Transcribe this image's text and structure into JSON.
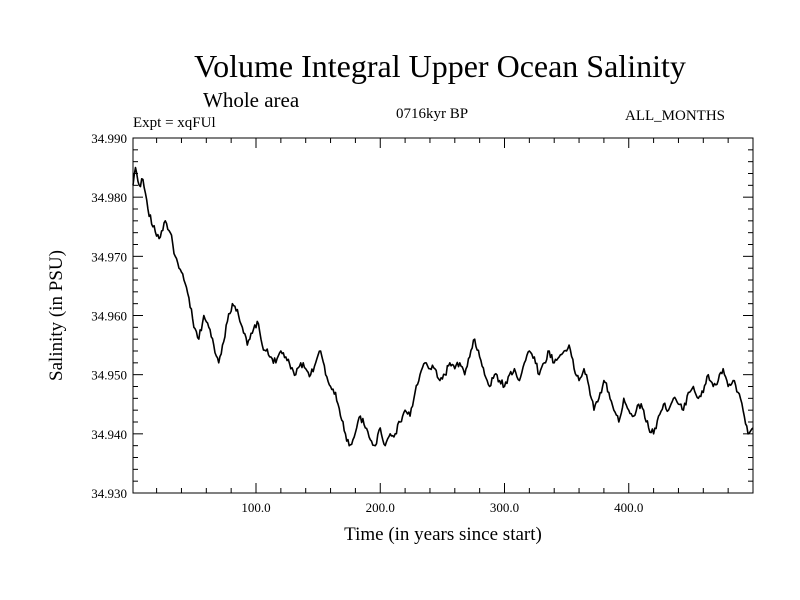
{
  "header": {
    "title": "Volume Integral Upper Ocean Salinity",
    "subtitle": "Whole area",
    "left_label": "Expt = xqFUl",
    "center_label": "0716kyr BP",
    "right_label": "ALL_MONTHS"
  },
  "colors": {
    "line": "#000000",
    "axis": "#000000",
    "background": "#ffffff"
  },
  "chart_data": {
    "type": "line",
    "title": "Volume Integral Upper Ocean Salinity",
    "subtitle": "Whole area",
    "xlabel": "Time (in years since start)",
    "ylabel": "Salinity (in PSU)",
    "xlim": [
      1,
      500
    ],
    "ylim": [
      34.93,
      34.99
    ],
    "x_ticks": [
      100,
      200,
      300,
      400
    ],
    "x_tick_labels": [
      "100.0",
      "200.0",
      "300.0",
      "400.0"
    ],
    "y_ticks": [
      34.93,
      34.94,
      34.95,
      34.96,
      34.97,
      34.98,
      34.99
    ],
    "y_tick_labels": [
      "34.930",
      "34.940",
      "34.950",
      "34.960",
      "34.970",
      "34.980",
      "34.990"
    ],
    "grid": false,
    "series": [
      {
        "name": "Salinity",
        "x": [
          1,
          3,
          6,
          9,
          13,
          17,
          22,
          27,
          31,
          35,
          38,
          42,
          46,
          50,
          54,
          58,
          62,
          66,
          70,
          73,
          77,
          81,
          85,
          89,
          93,
          97,
          101,
          105,
          108,
          112,
          116,
          120,
          124,
          128,
          132,
          136,
          140,
          144,
          148,
          152,
          156,
          160,
          164,
          168,
          172,
          175,
          178,
          181,
          184,
          188,
          192,
          196,
          200,
          204,
          208,
          212,
          216,
          220,
          224,
          228,
          232,
          236,
          240,
          244,
          248,
          252,
          256,
          260,
          264,
          268,
          272,
          276,
          280,
          284,
          288,
          292,
          296,
          300,
          304,
          308,
          312,
          316,
          320,
          324,
          328,
          332,
          336,
          340,
          344,
          348,
          352,
          356,
          360,
          364,
          368,
          372,
          376,
          380,
          384,
          388,
          392,
          396,
          400,
          404,
          408,
          412,
          416,
          420,
          424,
          428,
          432,
          436,
          440,
          444,
          448,
          452,
          456,
          460,
          464,
          468,
          472,
          476,
          480,
          484,
          488,
          492,
          496,
          500
        ],
        "values": [
          34.982,
          34.985,
          34.982,
          34.983,
          34.978,
          34.975,
          34.973,
          34.976,
          34.974,
          34.97,
          34.968,
          34.966,
          34.963,
          34.958,
          34.956,
          34.96,
          34.958,
          34.955,
          34.952,
          34.955,
          34.959,
          34.962,
          34.961,
          34.958,
          34.955,
          34.957,
          34.959,
          34.955,
          34.954,
          34.953,
          34.952,
          34.954,
          34.953,
          34.951,
          34.95,
          34.952,
          34.951,
          34.95,
          34.952,
          34.954,
          34.95,
          34.948,
          34.947,
          34.943,
          34.94,
          34.938,
          34.939,
          34.941,
          34.943,
          34.941,
          34.939,
          34.938,
          34.941,
          34.938,
          34.94,
          34.94,
          34.942,
          34.944,
          34.943,
          34.947,
          34.95,
          34.952,
          34.951,
          34.951,
          34.949,
          34.95,
          34.952,
          34.951,
          34.952,
          34.95,
          34.953,
          34.956,
          34.953,
          34.95,
          34.948,
          34.95,
          34.949,
          34.948,
          34.95,
          34.951,
          34.949,
          34.952,
          34.954,
          34.953,
          34.95,
          34.952,
          34.954,
          34.952,
          34.953,
          34.954,
          34.955,
          34.951,
          34.949,
          34.951,
          34.948,
          34.944,
          34.946,
          34.949,
          34.947,
          34.944,
          34.942,
          34.946,
          34.944,
          34.943,
          34.945,
          34.944,
          34.941,
          34.94,
          34.943,
          34.945,
          34.944,
          34.946,
          34.945,
          34.944,
          34.947,
          34.948,
          34.946,
          34.947,
          34.95,
          34.948,
          34.949,
          34.951,
          34.948,
          34.949,
          34.947,
          34.944,
          34.94,
          34.941
        ]
      }
    ]
  }
}
